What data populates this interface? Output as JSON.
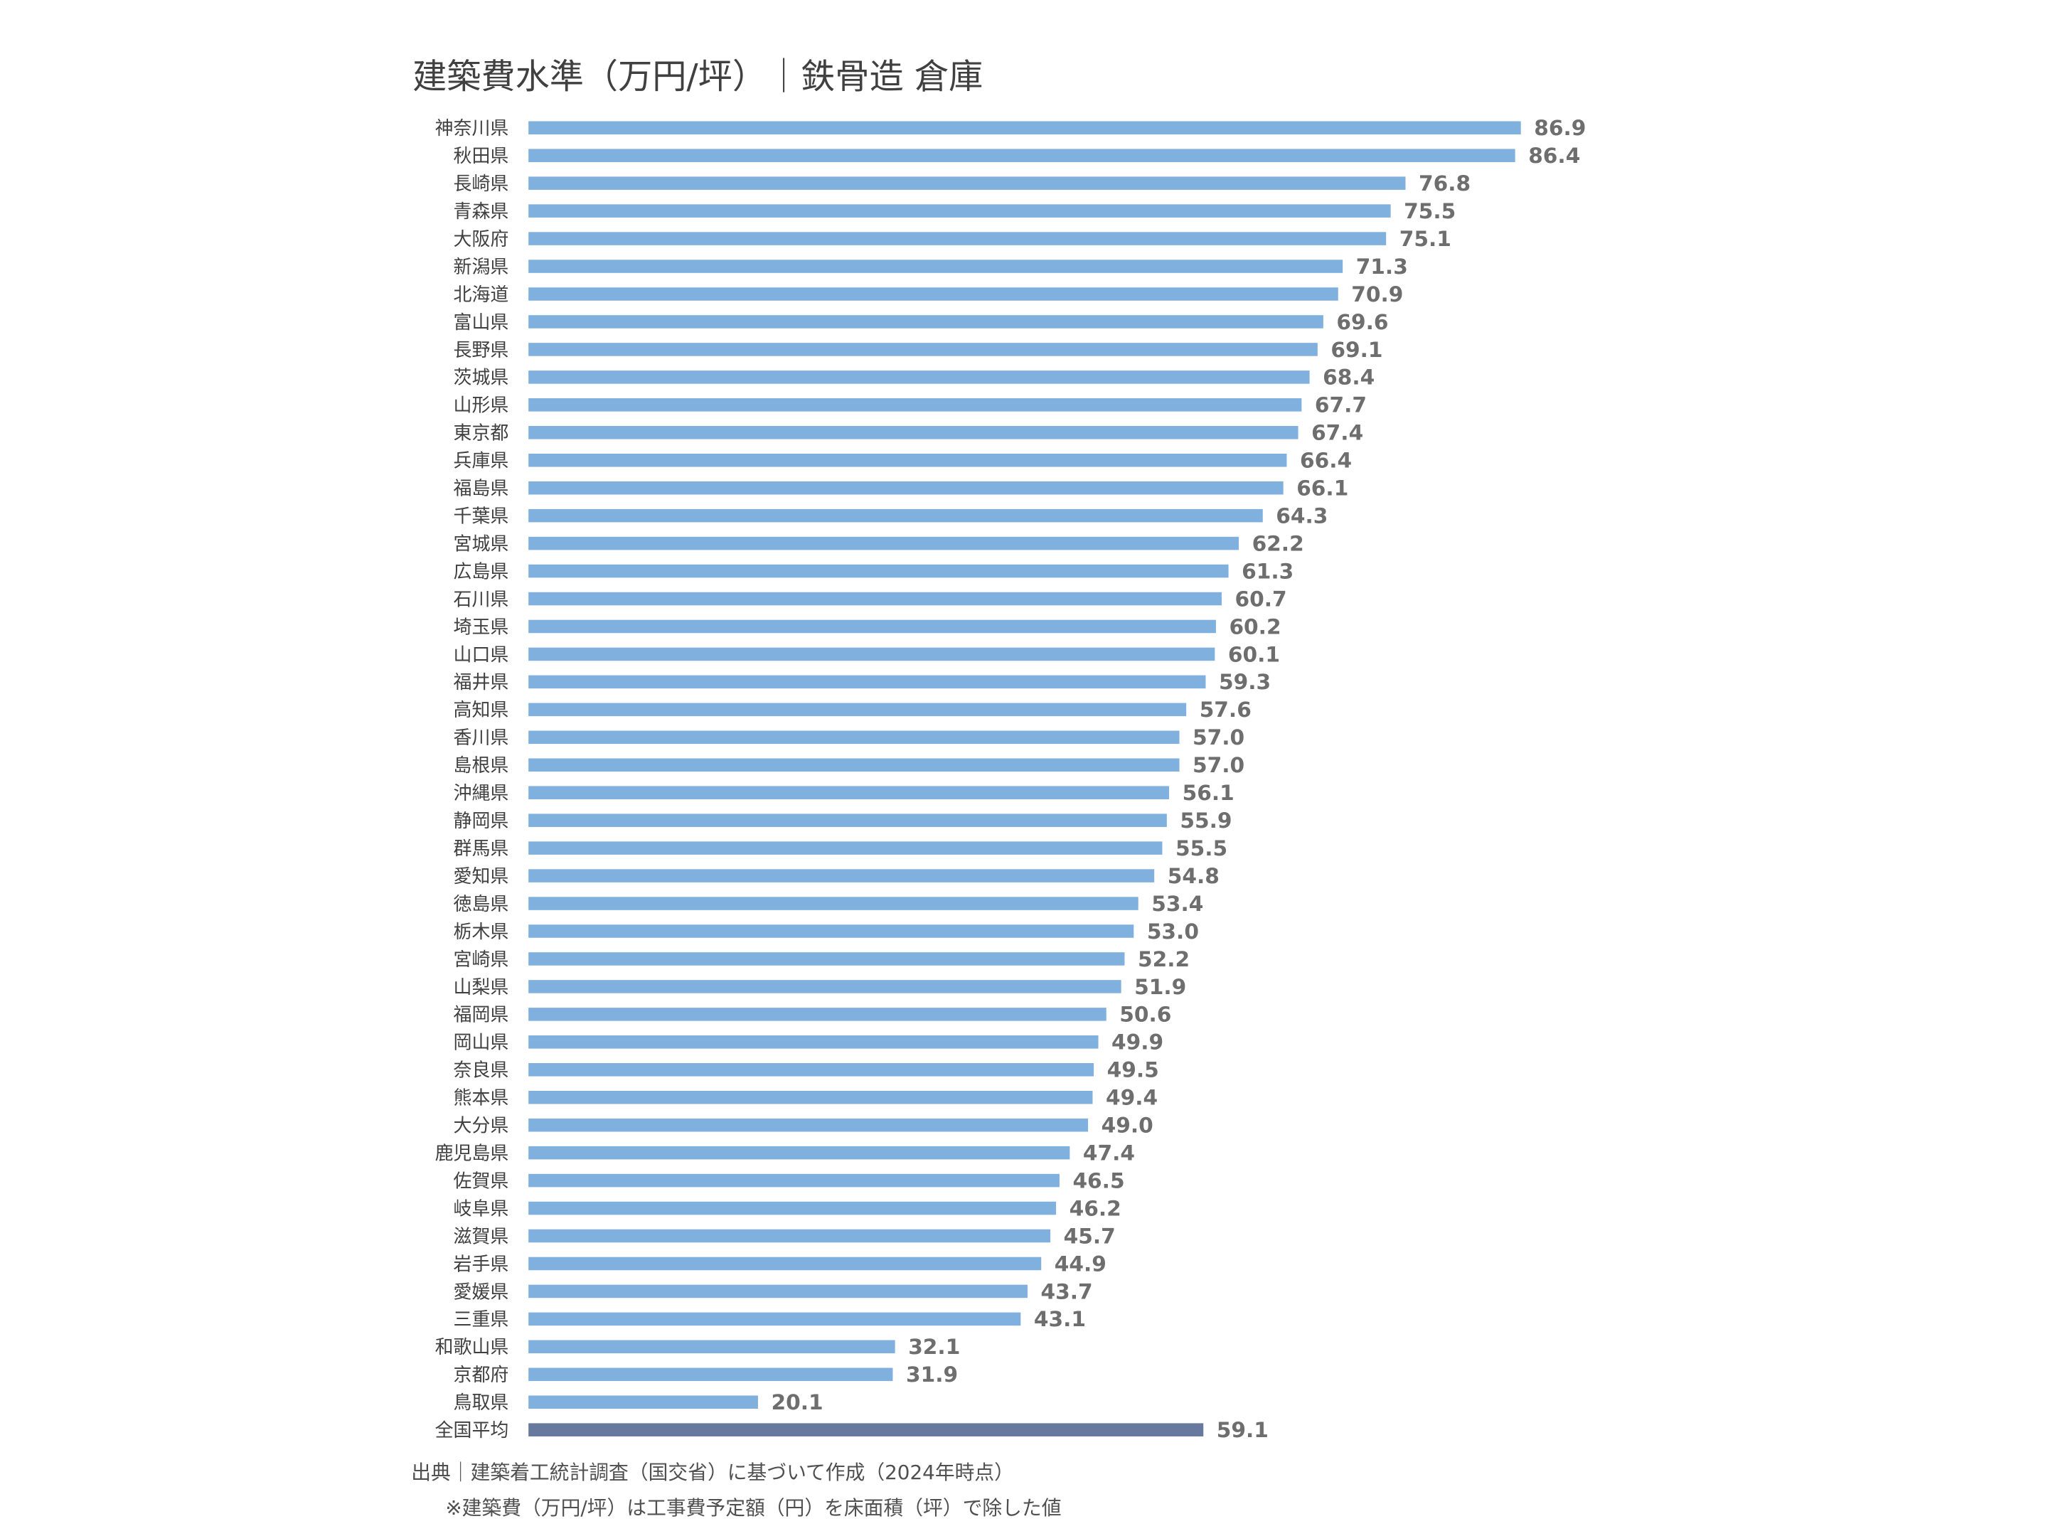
{
  "chart_data": {
    "type": "bar",
    "orientation": "horizontal",
    "title": "建築費水準（万円/坪）｜鉄骨造 倉庫",
    "categories": [
      "神奈川県",
      "秋田県",
      "長崎県",
      "青森県",
      "大阪府",
      "新潟県",
      "北海道",
      "富山県",
      "長野県",
      "茨城県",
      "山形県",
      "東京都",
      "兵庫県",
      "福島県",
      "千葉県",
      "宮城県",
      "広島県",
      "石川県",
      "埼玉県",
      "山口県",
      "福井県",
      "高知県",
      "香川県",
      "島根県",
      "沖縄県",
      "静岡県",
      "群馬県",
      "愛知県",
      "徳島県",
      "栃木県",
      "宮崎県",
      "山梨県",
      "福岡県",
      "岡山県",
      "奈良県",
      "熊本県",
      "大分県",
      "鹿児島県",
      "佐賀県",
      "岐阜県",
      "滋賀県",
      "岩手県",
      "愛媛県",
      "三重県",
      "和歌山県",
      "京都府",
      "鳥取県"
    ],
    "values": [
      86.9,
      86.4,
      76.8,
      75.5,
      75.1,
      71.3,
      70.9,
      69.6,
      69.1,
      68.4,
      67.7,
      67.4,
      66.4,
      66.1,
      64.3,
      62.2,
      61.3,
      60.7,
      60.2,
      60.1,
      59.3,
      57.6,
      57,
      57,
      56.1,
      55.9,
      55.5,
      54.8,
      53.4,
      53,
      52.2,
      51.9,
      50.6,
      49.9,
      49.5,
      49.4,
      49,
      47.4,
      46.5,
      46.2,
      45.7,
      44.9,
      43.7,
      43.1,
      32.1,
      31.9,
      20.1
    ],
    "value_labels": [
      "86.9",
      "86.4",
      "76.8",
      "75.5",
      "75.1",
      "71.3",
      "70.9",
      "69.6",
      "69.1",
      "68.4",
      "67.7",
      "67.4",
      "66.4",
      "66.1",
      "64.3",
      "62.2",
      "61.3",
      "60.7",
      "60.2",
      "60.1",
      "59.3",
      "57.6",
      "57.0",
      "57.0",
      "56.1",
      "55.9",
      "55.5",
      "54.8",
      "53.4",
      "53.0",
      "52.2",
      "51.9",
      "50.6",
      "49.9",
      "49.5",
      "49.4",
      "49.0",
      "47.4",
      "46.5",
      "46.2",
      "45.7",
      "44.9",
      "43.7",
      "43.1",
      "32.1",
      "31.9",
      "20.1"
    ],
    "color": "#7fb0de",
    "average": {
      "category": "全国平均",
      "value": 59.1,
      "color": "#68799f"
    },
    "notes": [
      "出典｜建築着工統計調査（国交省）に基づいて作成（2024年時点）",
      "※建築費（万円/坪）は工事費予定額（円）を床面積（坪）で除した値"
    ]
  }
}
